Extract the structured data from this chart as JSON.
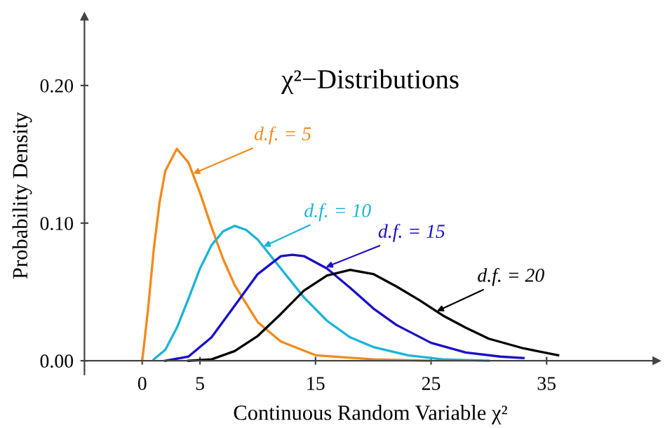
{
  "chart_data": {
    "type": "line",
    "title": "χ²−Distributions",
    "xlabel": "Continuous Random Variable χ²",
    "ylabel": "Probability Density",
    "xlim": [
      -5,
      44.5
    ],
    "ylim": [
      -0.01,
      0.25
    ],
    "xticks": [
      0,
      5,
      15,
      25,
      35
    ],
    "yticks": [
      {
        "value": 0,
        "label": "0.00"
      },
      {
        "value": 0.1,
        "label": "0.10"
      },
      {
        "value": 0.2,
        "label": "0.20"
      }
    ],
    "grid": false,
    "marker": "none",
    "line_style": "solid",
    "series": [
      {
        "color": "#f28a1c",
        "x": [
          0,
          0.5,
          1,
          1.5,
          2,
          3,
          4,
          5,
          6,
          7,
          8,
          10,
          12,
          15,
          20,
          25
        ],
        "values": [
          0,
          0.037,
          0.081,
          0.115,
          0.138,
          0.154,
          0.144,
          0.122,
          0.097,
          0.074,
          0.055,
          0.028,
          0.014,
          0.004,
          0.001,
          0
        ]
      },
      {
        "color": "#1ab4d8",
        "x": [
          1,
          2,
          3,
          4,
          5,
          6,
          7,
          8,
          9,
          10,
          12,
          14,
          16,
          18,
          20,
          23,
          26,
          30
        ],
        "values": [
          0.001,
          0.008,
          0.024,
          0.045,
          0.067,
          0.084,
          0.094,
          0.098,
          0.095,
          0.088,
          0.067,
          0.046,
          0.029,
          0.017,
          0.01,
          0.004,
          0.001,
          0
        ]
      },
      {
        "color": "#1a0fc8",
        "x": [
          2,
          4,
          6,
          8,
          10,
          12,
          13,
          14,
          16,
          18,
          20,
          22,
          25,
          28,
          31,
          33
        ],
        "values": [
          0,
          0.003,
          0.017,
          0.04,
          0.063,
          0.076,
          0.077,
          0.076,
          0.067,
          0.053,
          0.038,
          0.026,
          0.013,
          0.006,
          0.003,
          0.002
        ]
      },
      {
        "color": "#000000",
        "x": [
          4,
          6,
          8,
          10,
          12,
          14,
          16,
          18,
          20,
          22,
          24,
          26,
          28,
          30,
          33,
          36
        ],
        "values": [
          0,
          0.001,
          0.007,
          0.018,
          0.034,
          0.051,
          0.062,
          0.066,
          0.063,
          0.054,
          0.044,
          0.033,
          0.024,
          0.016,
          0.009,
          0.004
        ]
      }
    ],
    "annotations": [
      {
        "text": "d.f. = 5",
        "x": 4.4,
        "y": 0.136
      },
      {
        "text": "d.f. = 10",
        "x": 10.5,
        "y": 0.083
      },
      {
        "text": "d.f. = 15",
        "x": 15.9,
        "y": 0.068
      },
      {
        "text": "d.f. = 20",
        "x": 25.5,
        "y": 0.036
      }
    ]
  }
}
